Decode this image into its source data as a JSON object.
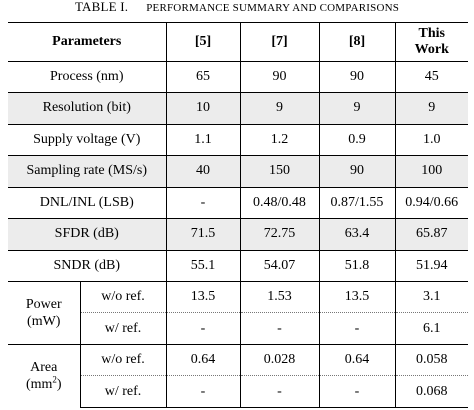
{
  "caption": {
    "label": "TABLE I.",
    "title": "PERFORMANCE SUMMARY AND COMPARISONS"
  },
  "header": {
    "parameters": "Parameters",
    "col1": "[5]",
    "col2": "[7]",
    "col3": "[8]",
    "col4_line1": "This",
    "col4_line2": "Work"
  },
  "rows": [
    {
      "label": "Process (nm)",
      "v": [
        "65",
        "90",
        "90",
        "45"
      ]
    },
    {
      "label": "Resolution (bit)",
      "v": [
        "10",
        "9",
        "9",
        "9"
      ]
    },
    {
      "label": "Supply voltage (V)",
      "v": [
        "1.1",
        "1.2",
        "0.9",
        "1.0"
      ]
    },
    {
      "label": "Sampling rate (MS/s)",
      "v": [
        "40",
        "150",
        "90",
        "100"
      ]
    },
    {
      "label": "DNL/INL (LSB)",
      "v": [
        "-",
        "0.48/0.48",
        "0.87/1.55",
        "0.94/0.66"
      ]
    },
    {
      "label": "SFDR (dB)",
      "v": [
        "71.5",
        "72.75",
        "63.4",
        "65.87"
      ]
    },
    {
      "label": "SNDR (dB)",
      "v": [
        "55.1",
        "54.07",
        "51.8",
        "51.94"
      ]
    }
  ],
  "power": {
    "label_line1": "Power",
    "label_line2": "(mW)",
    "sub1": "w/o ref.",
    "sub1_v": [
      "13.5",
      "1.53",
      "13.5",
      "3.1"
    ],
    "sub2": "w/ ref.",
    "sub2_v": [
      "-",
      "-",
      "-",
      "6.1"
    ]
  },
  "area": {
    "label_line1": "Area",
    "label_line2_pre": "(mm",
    "label_line2_sup": "2",
    "label_line2_post": ")",
    "sub1": "w/o ref.",
    "sub1_v": [
      "0.64",
      "0.028",
      "0.64",
      "0.058"
    ],
    "sub2": "w/ ref.",
    "sub2_v": [
      "-",
      "-",
      "-",
      "0.068"
    ]
  }
}
